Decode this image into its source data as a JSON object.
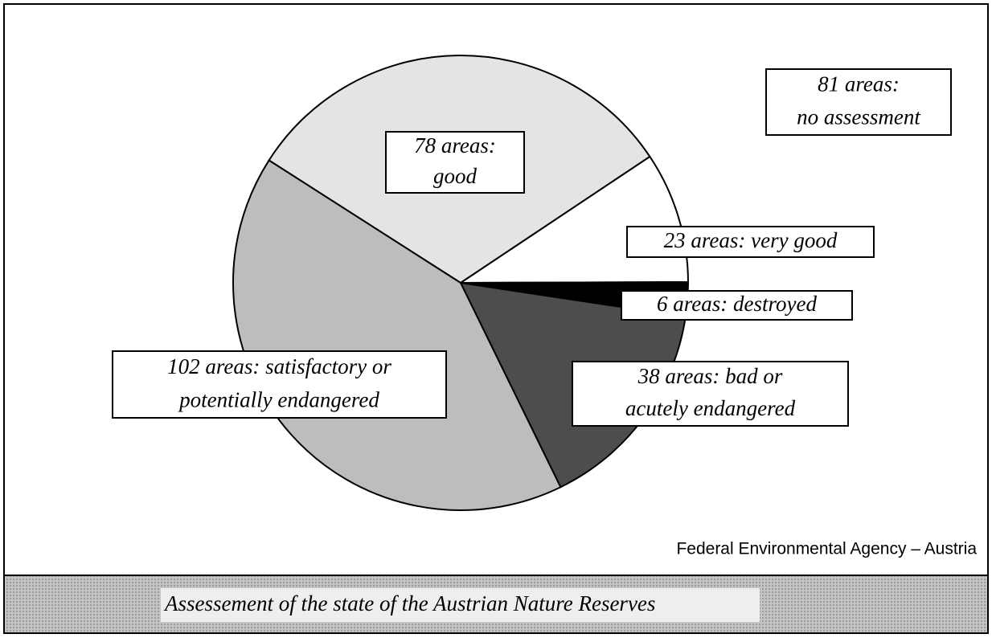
{
  "chart_data": {
    "type": "pie",
    "title": "Assessement of the state of the Austrian Nature Reserves",
    "source": "Federal Environmental Agency – Austria",
    "values": [
      78,
      23,
      6,
      38,
      102
    ],
    "value_labels": [
      [
        "78 areas:",
        "good"
      ],
      [
        "23 areas: very good"
      ],
      [
        "6 areas: destroyed"
      ],
      [
        "38 areas:  bad or",
        "acutely endangered"
      ],
      [
        "102 areas: satisfactory or",
        "potentially endangered"
      ]
    ],
    "colors": [
      "#e4e4e4",
      "#ffffff",
      "#000000",
      "#4d4d4d",
      "#bdbdbd"
    ],
    "annotations": [
      [
        "81 areas:",
        "no assessment"
      ]
    ]
  }
}
